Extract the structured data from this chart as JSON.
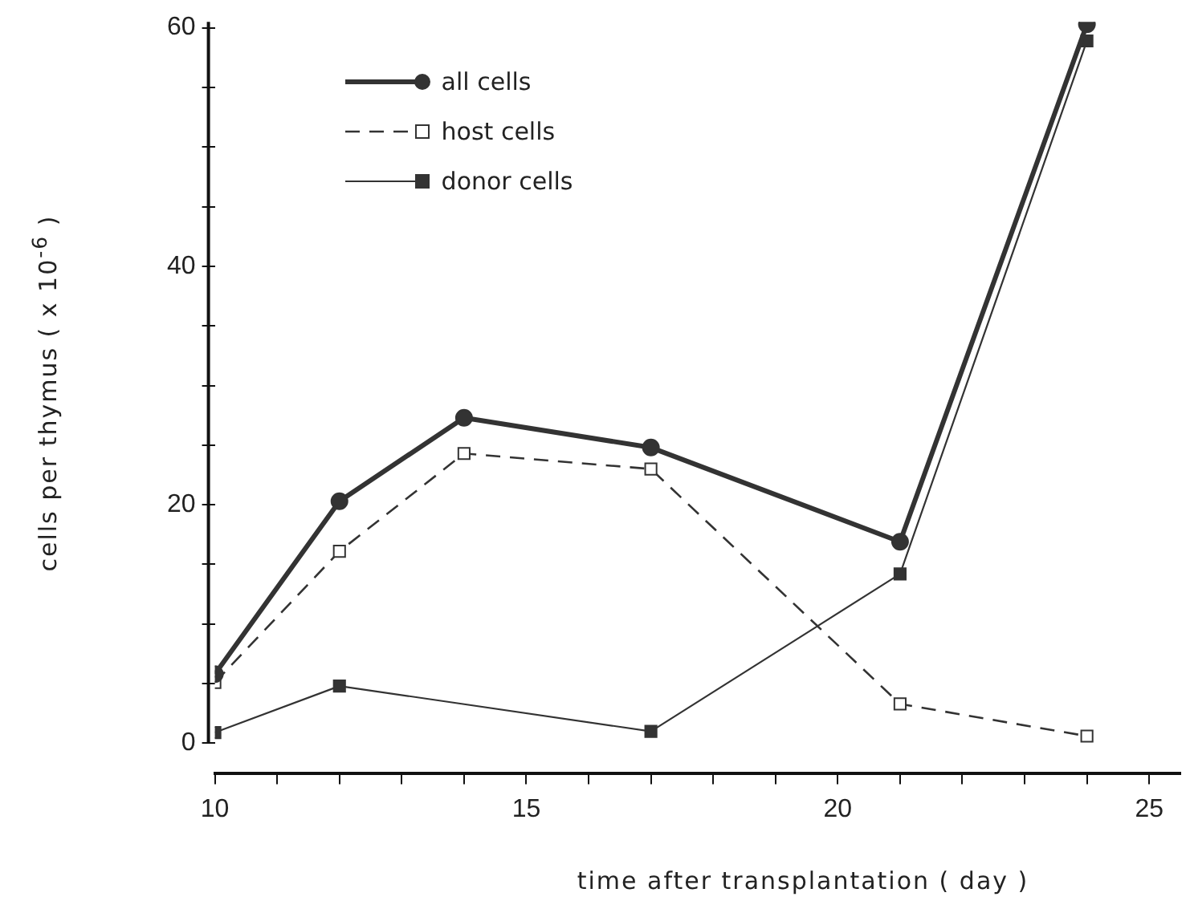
{
  "chart_data": {
    "type": "line",
    "xlabel": "time after transplantation ( day )",
    "ylabel": "cells per thymus  ( x 10$^{-6}$ )",
    "xlim": [
      10,
      25.5
    ],
    "ylim": [
      -2.5,
      60.5
    ],
    "xticks": [
      10,
      {
        "value": 11,
        "label": null
      },
      {
        "value": 12,
        "label": null
      },
      {
        "value": 13,
        "label": null
      },
      {
        "value": 14,
        "label": null
      },
      15,
      {
        "value": 16,
        "label": null
      },
      {
        "value": 17,
        "label": null
      },
      {
        "value": 18,
        "label": null
      },
      {
        "value": 19,
        "label": null
      },
      20,
      {
        "value": 21,
        "label": null
      },
      {
        "value": 22,
        "label": null
      },
      {
        "value": 23,
        "label": null
      },
      {
        "value": 24,
        "label": null
      },
      25
    ],
    "yticks": [
      0,
      {
        "value": 5,
        "label": null
      },
      {
        "value": 10,
        "label": null
      },
      {
        "value": 15,
        "label": null
      },
      20,
      {
        "value": 25,
        "label": null
      },
      {
        "value": 30,
        "label": null
      },
      {
        "value": 35,
        "label": null
      },
      40,
      {
        "value": 45,
        "label": null
      },
      {
        "value": 50,
        "label": null
      },
      {
        "value": 55,
        "label": null
      },
      60
    ],
    "grid": false,
    "legend": "top left",
    "series": [
      {
        "name": "all cells",
        "color": "#333333",
        "marker": "circle",
        "line_style": "solid",
        "x": [
          10,
          12,
          14,
          17,
          21,
          24
        ],
        "values": [
          5.8,
          20.3,
          27.3,
          24.8,
          16.9,
          60.3
        ]
      },
      {
        "name": "host cells",
        "color": "#333333",
        "marker": "square",
        "line_style": "dashed",
        "x": [
          10,
          12,
          14,
          17,
          21,
          24
        ],
        "values": [
          5.1,
          16.1,
          24.3,
          23.0,
          3.3,
          0.6
        ]
      },
      {
        "name": "donor cells",
        "color": "#333333",
        "marker": "square",
        "line_style": "solid",
        "x": [
          10,
          12,
          17,
          21,
          24
        ],
        "values": [
          0.9,
          4.8,
          1.0,
          14.2,
          58.9
        ]
      }
    ]
  }
}
